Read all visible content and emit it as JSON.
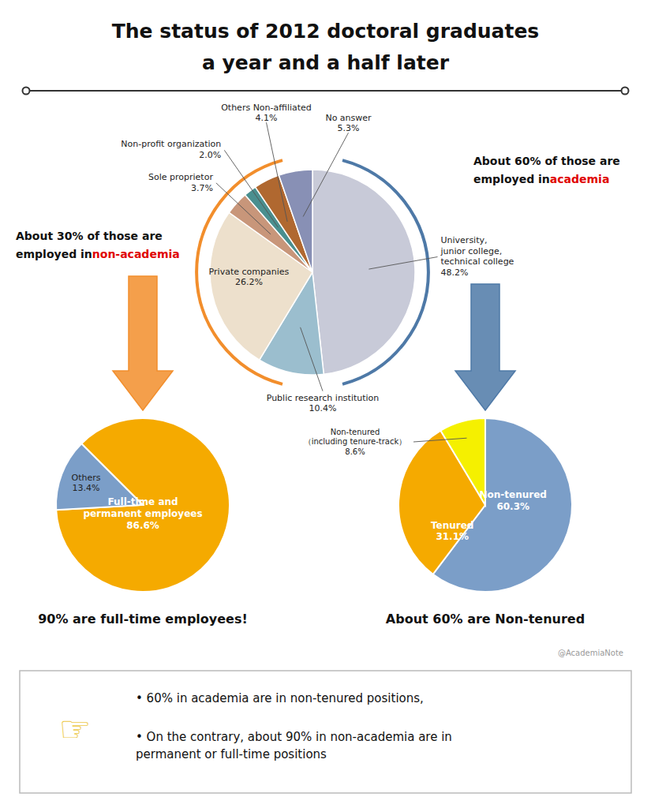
{
  "chart_data": [
    {
      "type": "pie",
      "title": "The status of 2012 doctoral graduates",
      "subtitle": "a year and a half later",
      "categories": [
        "University,\njunior college,\ntechnical college",
        "Public research institution",
        "Private companies",
        "Sole proprietor",
        "Non-profit organization",
        "Others Non-affiliated",
        "No answer"
      ],
      "values": [
        48.2,
        10.4,
        26.2,
        3.7,
        2.0,
        4.1,
        5.3
      ],
      "value_labels": [
        "48.2%",
        "10.4%",
        "26.2%",
        "3.7%",
        "2.0%",
        "4.1%",
        "5.3%"
      ],
      "colors": [
        "#c8cad8",
        "#9bbece",
        "#ede0cc",
        "#c8967a",
        "#4a8f8f",
        "#b06830",
        "#8890b5"
      ],
      "data_labels": true,
      "annotations": [
        {
          "text": "About 30% of those are"
        },
        {
          "text": "employed in "
        },
        {
          "text": "non-academia",
          "color": "#e00000"
        },
        {
          "text": "About 60% of those are"
        },
        {
          "text": "employed in "
        },
        {
          "text": "academia",
          "color": "#e00000"
        },
        {
          "text": "@AcademiaNote"
        },
        {
          "text": "☞"
        },
        {
          "text": "• 60% in academia are in non-tenured positions,"
        },
        {
          "text": "• On the contrary, about 90% in non-academia are in\npermanent or full-time positions"
        }
      ]
    },
    {
      "type": "pie",
      "title": "90% are full-time employees!",
      "categories": [
        "Full-time and\npermanent employees",
        "Others"
      ],
      "values": [
        86.6,
        13.4
      ],
      "value_labels": [
        "86.6%",
        "13.4%"
      ],
      "colors": [
        "#f5aa00",
        "#7b9ec8"
      ],
      "data_labels": true
    },
    {
      "type": "pie",
      "title": "About 60% are Non-tenured",
      "categories": [
        "Non-tenured",
        "Tenured",
        "Non-tenured\n（including tenure-track）"
      ],
      "values": [
        60.3,
        31.1,
        8.6
      ],
      "value_labels": [
        "60.3%",
        "31.1%",
        "8.6%"
      ],
      "colors": [
        "#7b9ec8",
        "#f5aa00",
        "#f5f000"
      ],
      "data_labels": true
    }
  ]
}
